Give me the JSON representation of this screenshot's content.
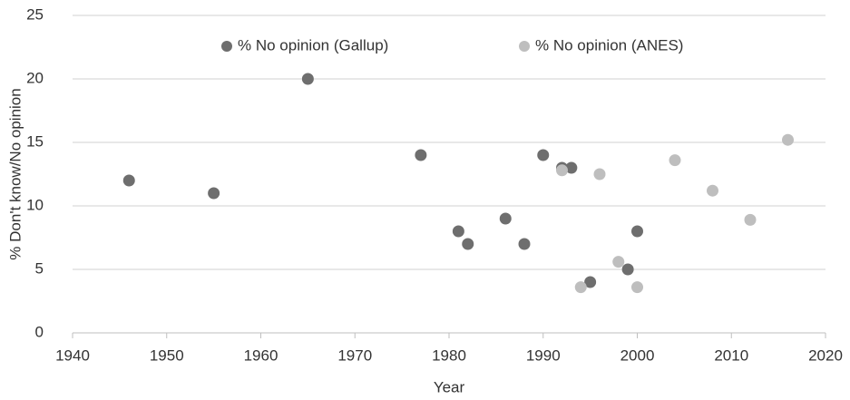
{
  "chart_data": {
    "type": "scatter",
    "xlabel": "Year",
    "ylabel": "% Don't know/No opinion",
    "xlim": [
      1940,
      2020
    ],
    "xticks": [
      1940,
      1950,
      1960,
      1970,
      1980,
      1990,
      2000,
      2010,
      2020
    ],
    "ylim": [
      0,
      25
    ],
    "yticks": [
      0,
      5,
      10,
      15,
      20,
      25
    ],
    "grid": true,
    "legend": "top",
    "series": [
      {
        "name": "% No opinion (Gallup)",
        "color": "#6e6e6e",
        "x": [
          1946,
          1955,
          1965,
          1977,
          1981,
          1982,
          1986,
          1988,
          1990,
          1992,
          1993,
          1995,
          1999,
          2000
        ],
        "values": [
          12,
          11,
          20,
          14,
          8,
          7,
          9,
          7,
          14,
          13,
          13,
          4,
          5,
          8
        ]
      },
      {
        "name": "% No opinion (ANES)",
        "color": "#bebebe",
        "x": [
          1992,
          1994,
          1996,
          1998,
          2000,
          2004,
          2008,
          2012,
          2016
        ],
        "values": [
          12.8,
          3.6,
          12.5,
          5.6,
          3.6,
          13.6,
          11.2,
          8.9,
          15.2
        ]
      }
    ]
  }
}
